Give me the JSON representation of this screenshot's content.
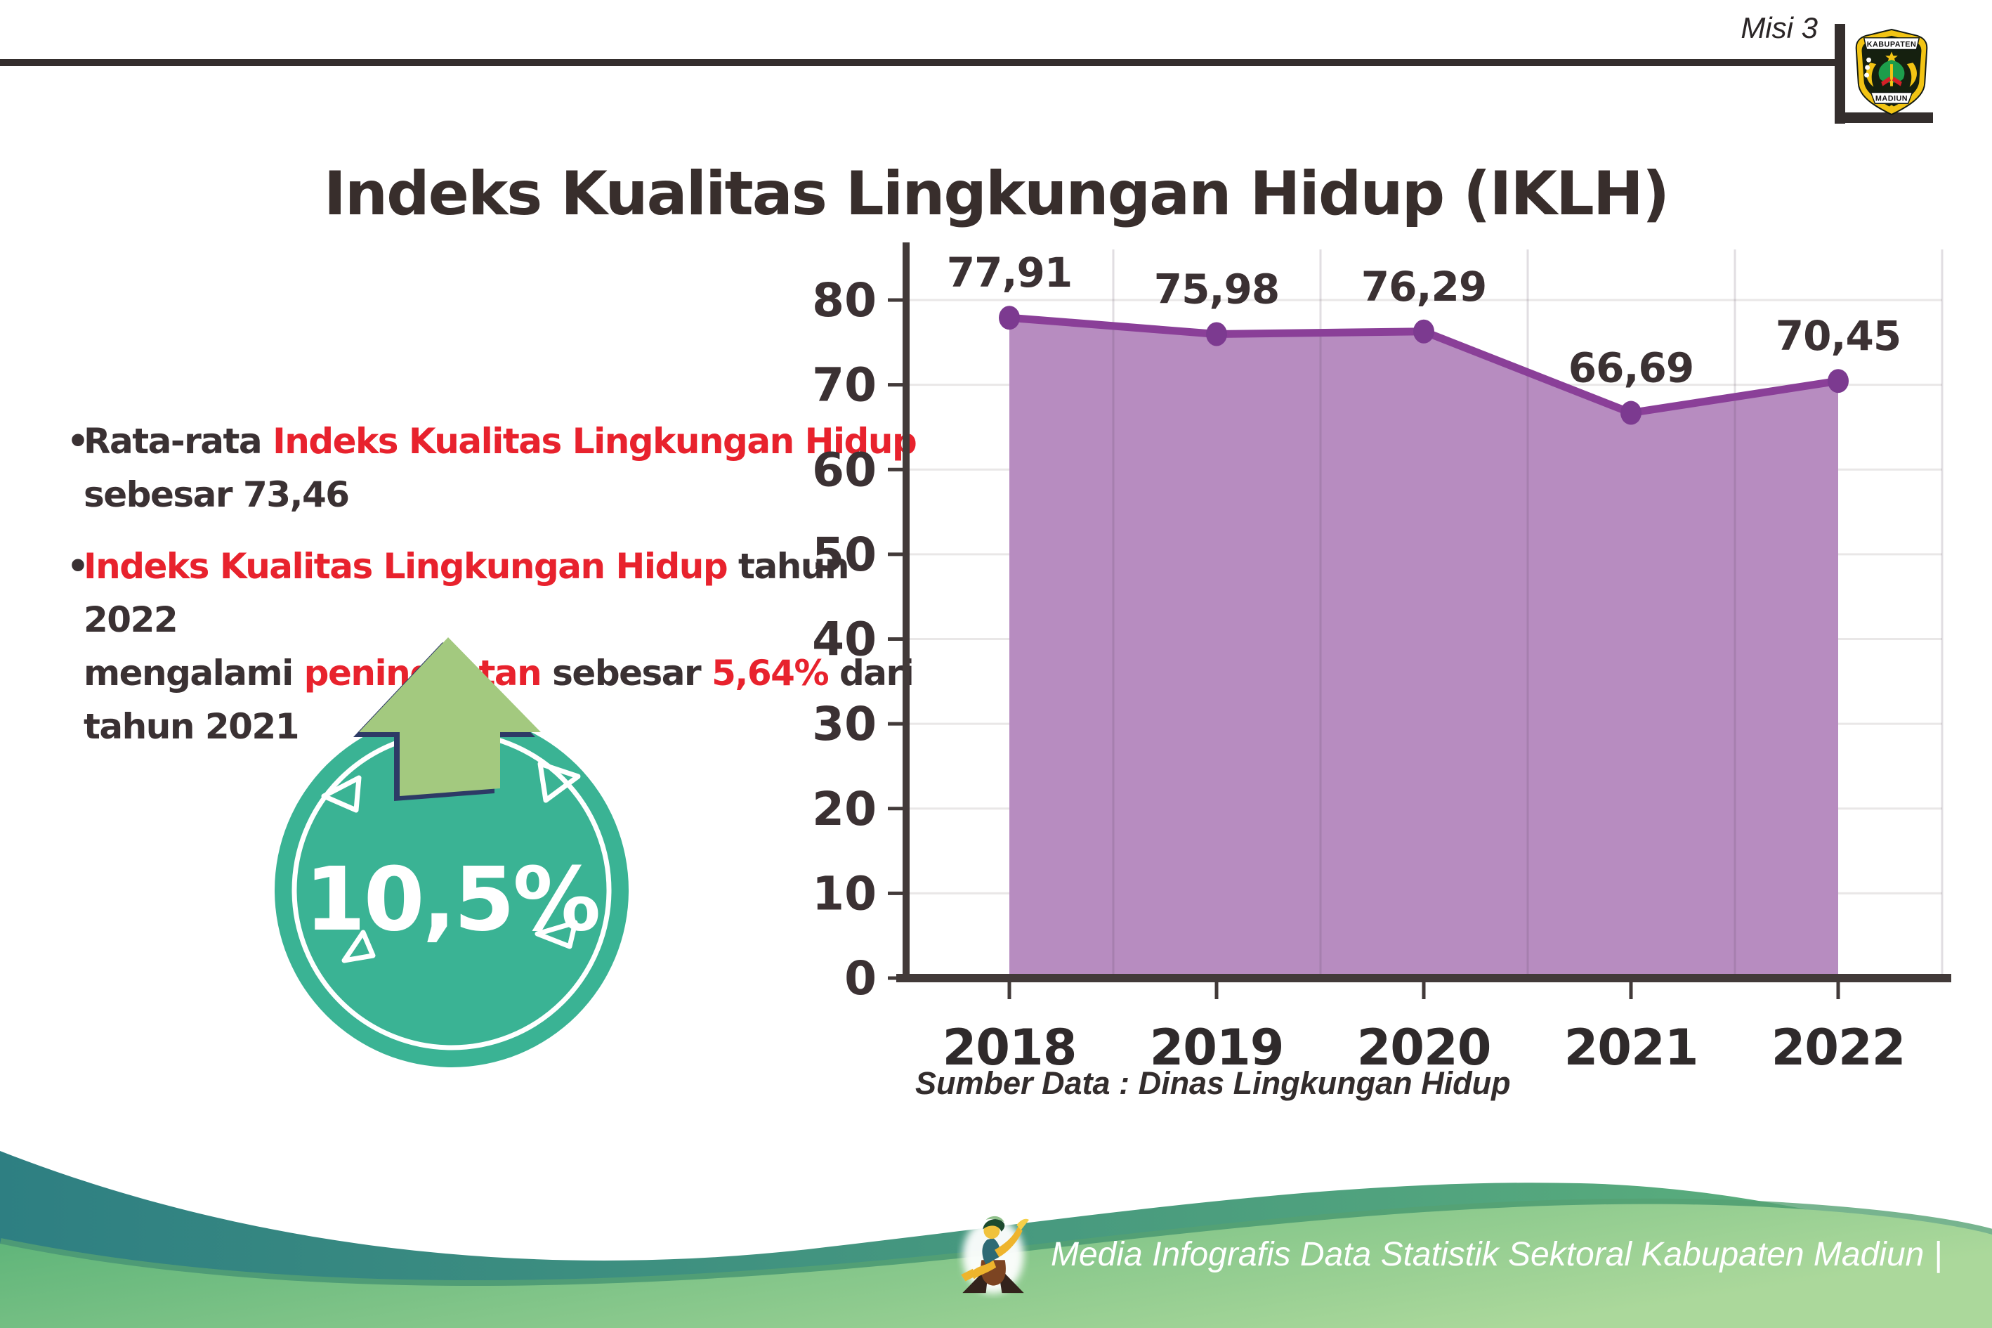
{
  "header": {
    "misi": "Misi 3",
    "logo": {
      "top": "KABUPATEN",
      "bottom": "MADIUN"
    }
  },
  "title": "Indeks Kualitas Lingkungan Hidup (IKLH)",
  "bullets": {
    "b1": {
      "bullet": "•",
      "t1": "Rata-rata ",
      "h1": "Indeks Kualitas Lingkungan Hidup",
      "t2": "sebesar 73,46"
    },
    "b2": {
      "bullet": "•",
      "h1": "Indeks Kualitas Lingkungan Hidup",
      "t1": " tahun 2022",
      "t2": "mengalami ",
      "h2": "peningkatan",
      "t3": " sebesar ",
      "h3": "5,64%",
      "t4": " dari",
      "t5": "tahun 2021"
    }
  },
  "badge": {
    "value": "10,5%",
    "meaning": "kenaikan"
  },
  "chart_data": {
    "type": "area",
    "title": "Indeks Kualitas Lingkungan Hidup (IKLH)",
    "categories": [
      "2018",
      "2019",
      "2020",
      "2021",
      "2022"
    ],
    "series": [
      {
        "name": "IKLH",
        "values": [
          77.91,
          75.98,
          76.29,
          66.69,
          70.45
        ],
        "labels": [
          "77,91",
          "75,98",
          "76,29",
          "66,69",
          "70,45"
        ]
      }
    ],
    "ylim": [
      0,
      80
    ],
    "yticks": [
      0,
      10,
      20,
      30,
      40,
      50,
      60,
      70,
      80
    ],
    "grid": true,
    "legend": false,
    "source": "Sumber Data : Dinas Lingkungan Hidup",
    "colors": {
      "line": "#8a3f98",
      "marker": "#7c3a90",
      "fill": "#b78cc0",
      "axis": "#423a39",
      "grid": "#e9e7e7",
      "label": "#3b3133"
    }
  },
  "footer": {
    "text": "Media Infografis Data Statistik Sektoral Kabupaten Madiun |"
  },
  "colors": {
    "red": "#e8222d",
    "dark": "#3a3133",
    "badge_teal": "#3ab394",
    "arrow_green": "#a3c97f",
    "wave_teal": "#2e7f82",
    "wave_green": "#6cbd83"
  }
}
